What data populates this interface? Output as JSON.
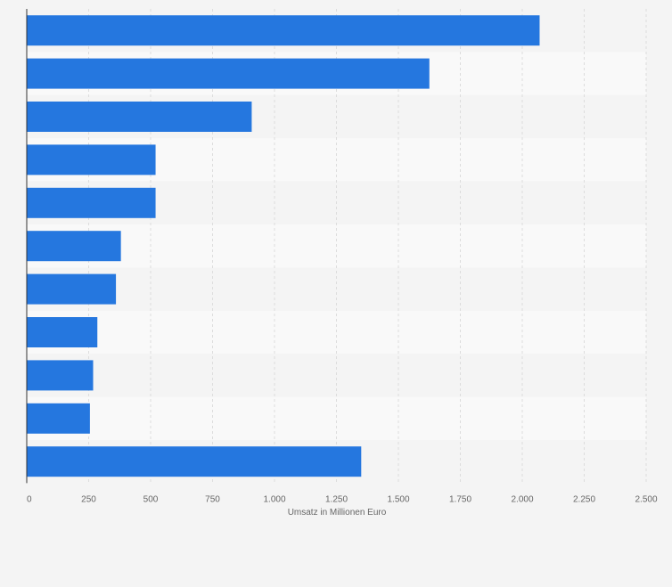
{
  "chart_data": {
    "type": "bar",
    "orientation": "horizontal",
    "categories": [
      "",
      "",
      "",
      "",
      "",
      "",
      "",
      "",
      "",
      "",
      ""
    ],
    "values": [
      2070,
      1625,
      908,
      520,
      520,
      380,
      360,
      285,
      268,
      255,
      1350
    ],
    "xlabel": "Umsatz in Millionen Euro",
    "ylabel": "",
    "xlim": [
      0,
      2500
    ],
    "xticks": [
      0,
      250,
      500,
      750,
      1000,
      1250,
      1500,
      1750,
      2000,
      2250,
      2500
    ],
    "xtick_labels": [
      "0",
      "250",
      "500",
      "750",
      "1.000",
      "1.250",
      "1.500",
      "1.750",
      "2.000",
      "2.250",
      "2.500"
    ],
    "grid": true,
    "colors": {
      "bar": "#2577df",
      "band_dark": "#f4f4f4",
      "band_light": "#f9f9f9",
      "grid": "#dddddd",
      "axis": "#333333",
      "text": "#666666"
    }
  }
}
